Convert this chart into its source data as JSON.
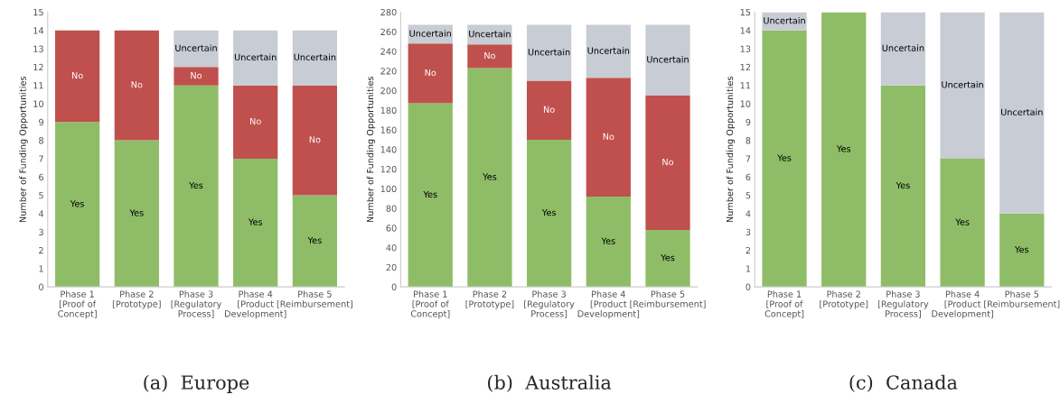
{
  "chart_data": [
    {
      "type": "bar",
      "title": "(a)  Europe",
      "ylabel": "Number of Funding Opportunities",
      "stacked": true,
      "legend": false,
      "grid": false,
      "categories": [
        "Phase 1 [Proof of\nConcept]",
        "Phase 2 [Prototype]",
        "Phase 3 [Regulatory\nProcess]",
        "Phase 4 [Product\nDevelopment]",
        "Phase 5 [Reimbursement]"
      ],
      "ylim": [
        0,
        15
      ],
      "yticks": [
        0,
        1,
        2,
        3,
        4,
        5,
        6,
        7,
        8,
        9,
        10,
        11,
        12,
        13,
        14,
        15
      ],
      "series": [
        {
          "name": "Yes",
          "color": "#8fbd67",
          "values": [
            9,
            8,
            11,
            7,
            5
          ]
        },
        {
          "name": "No",
          "color": "#c0504d",
          "values": [
            5,
            6,
            1,
            4,
            6
          ]
        },
        {
          "name": "Uncertain",
          "color": "#c8ccd4",
          "values": [
            0,
            0,
            2,
            3,
            3
          ]
        }
      ]
    },
    {
      "type": "bar",
      "title": "(b)  Australia",
      "ylabel": "Number of Funding Opportunities",
      "stacked": true,
      "legend": false,
      "grid": false,
      "categories": [
        "Phase 1 [Proof of\nConcept]",
        "Phase 2 [Prototype]",
        "Phase 3 [Regulatory\nProcess]",
        "Phase 4 [Product\nDevelopment]",
        "Phase 5 [Reimbursement]"
      ],
      "ylim": [
        0,
        280
      ],
      "yticks": [
        0,
        20,
        40,
        60,
        80,
        100,
        120,
        140,
        160,
        180,
        200,
        220,
        240,
        260,
        280
      ],
      "series": [
        {
          "name": "Yes",
          "color": "#8fbd67",
          "values": [
            187,
            223,
            150,
            92,
            58
          ]
        },
        {
          "name": "No",
          "color": "#c0504d",
          "values": [
            61,
            24,
            60,
            121,
            137
          ]
        },
        {
          "name": "Uncertain",
          "color": "#c8ccd4",
          "values": [
            19,
            20,
            57,
            54,
            72
          ]
        }
      ]
    },
    {
      "type": "bar",
      "title": "(c)  Canada",
      "ylabel": "Number of Funding Opportunities",
      "stacked": true,
      "legend": false,
      "grid": false,
      "categories": [
        "Phase 1 [Proof of\nConcept]",
        "Phase 2 [Prototype]",
        "Phase 3 [Regulatory\nProcess]",
        "Phase 4 [Product\nDevelopment]",
        "Phase 5 [Reimbursement]"
      ],
      "ylim": [
        0,
        15
      ],
      "yticks": [
        0,
        1,
        2,
        3,
        4,
        5,
        6,
        7,
        8,
        9,
        10,
        11,
        12,
        13,
        14,
        15
      ],
      "series": [
        {
          "name": "Yes",
          "color": "#8fbd67",
          "values": [
            14,
            15,
            11,
            7,
            4
          ]
        },
        {
          "name": "Uncertain",
          "color": "#c8ccd4",
          "values": [
            1,
            0,
            4,
            8,
            11
          ]
        }
      ]
    }
  ]
}
